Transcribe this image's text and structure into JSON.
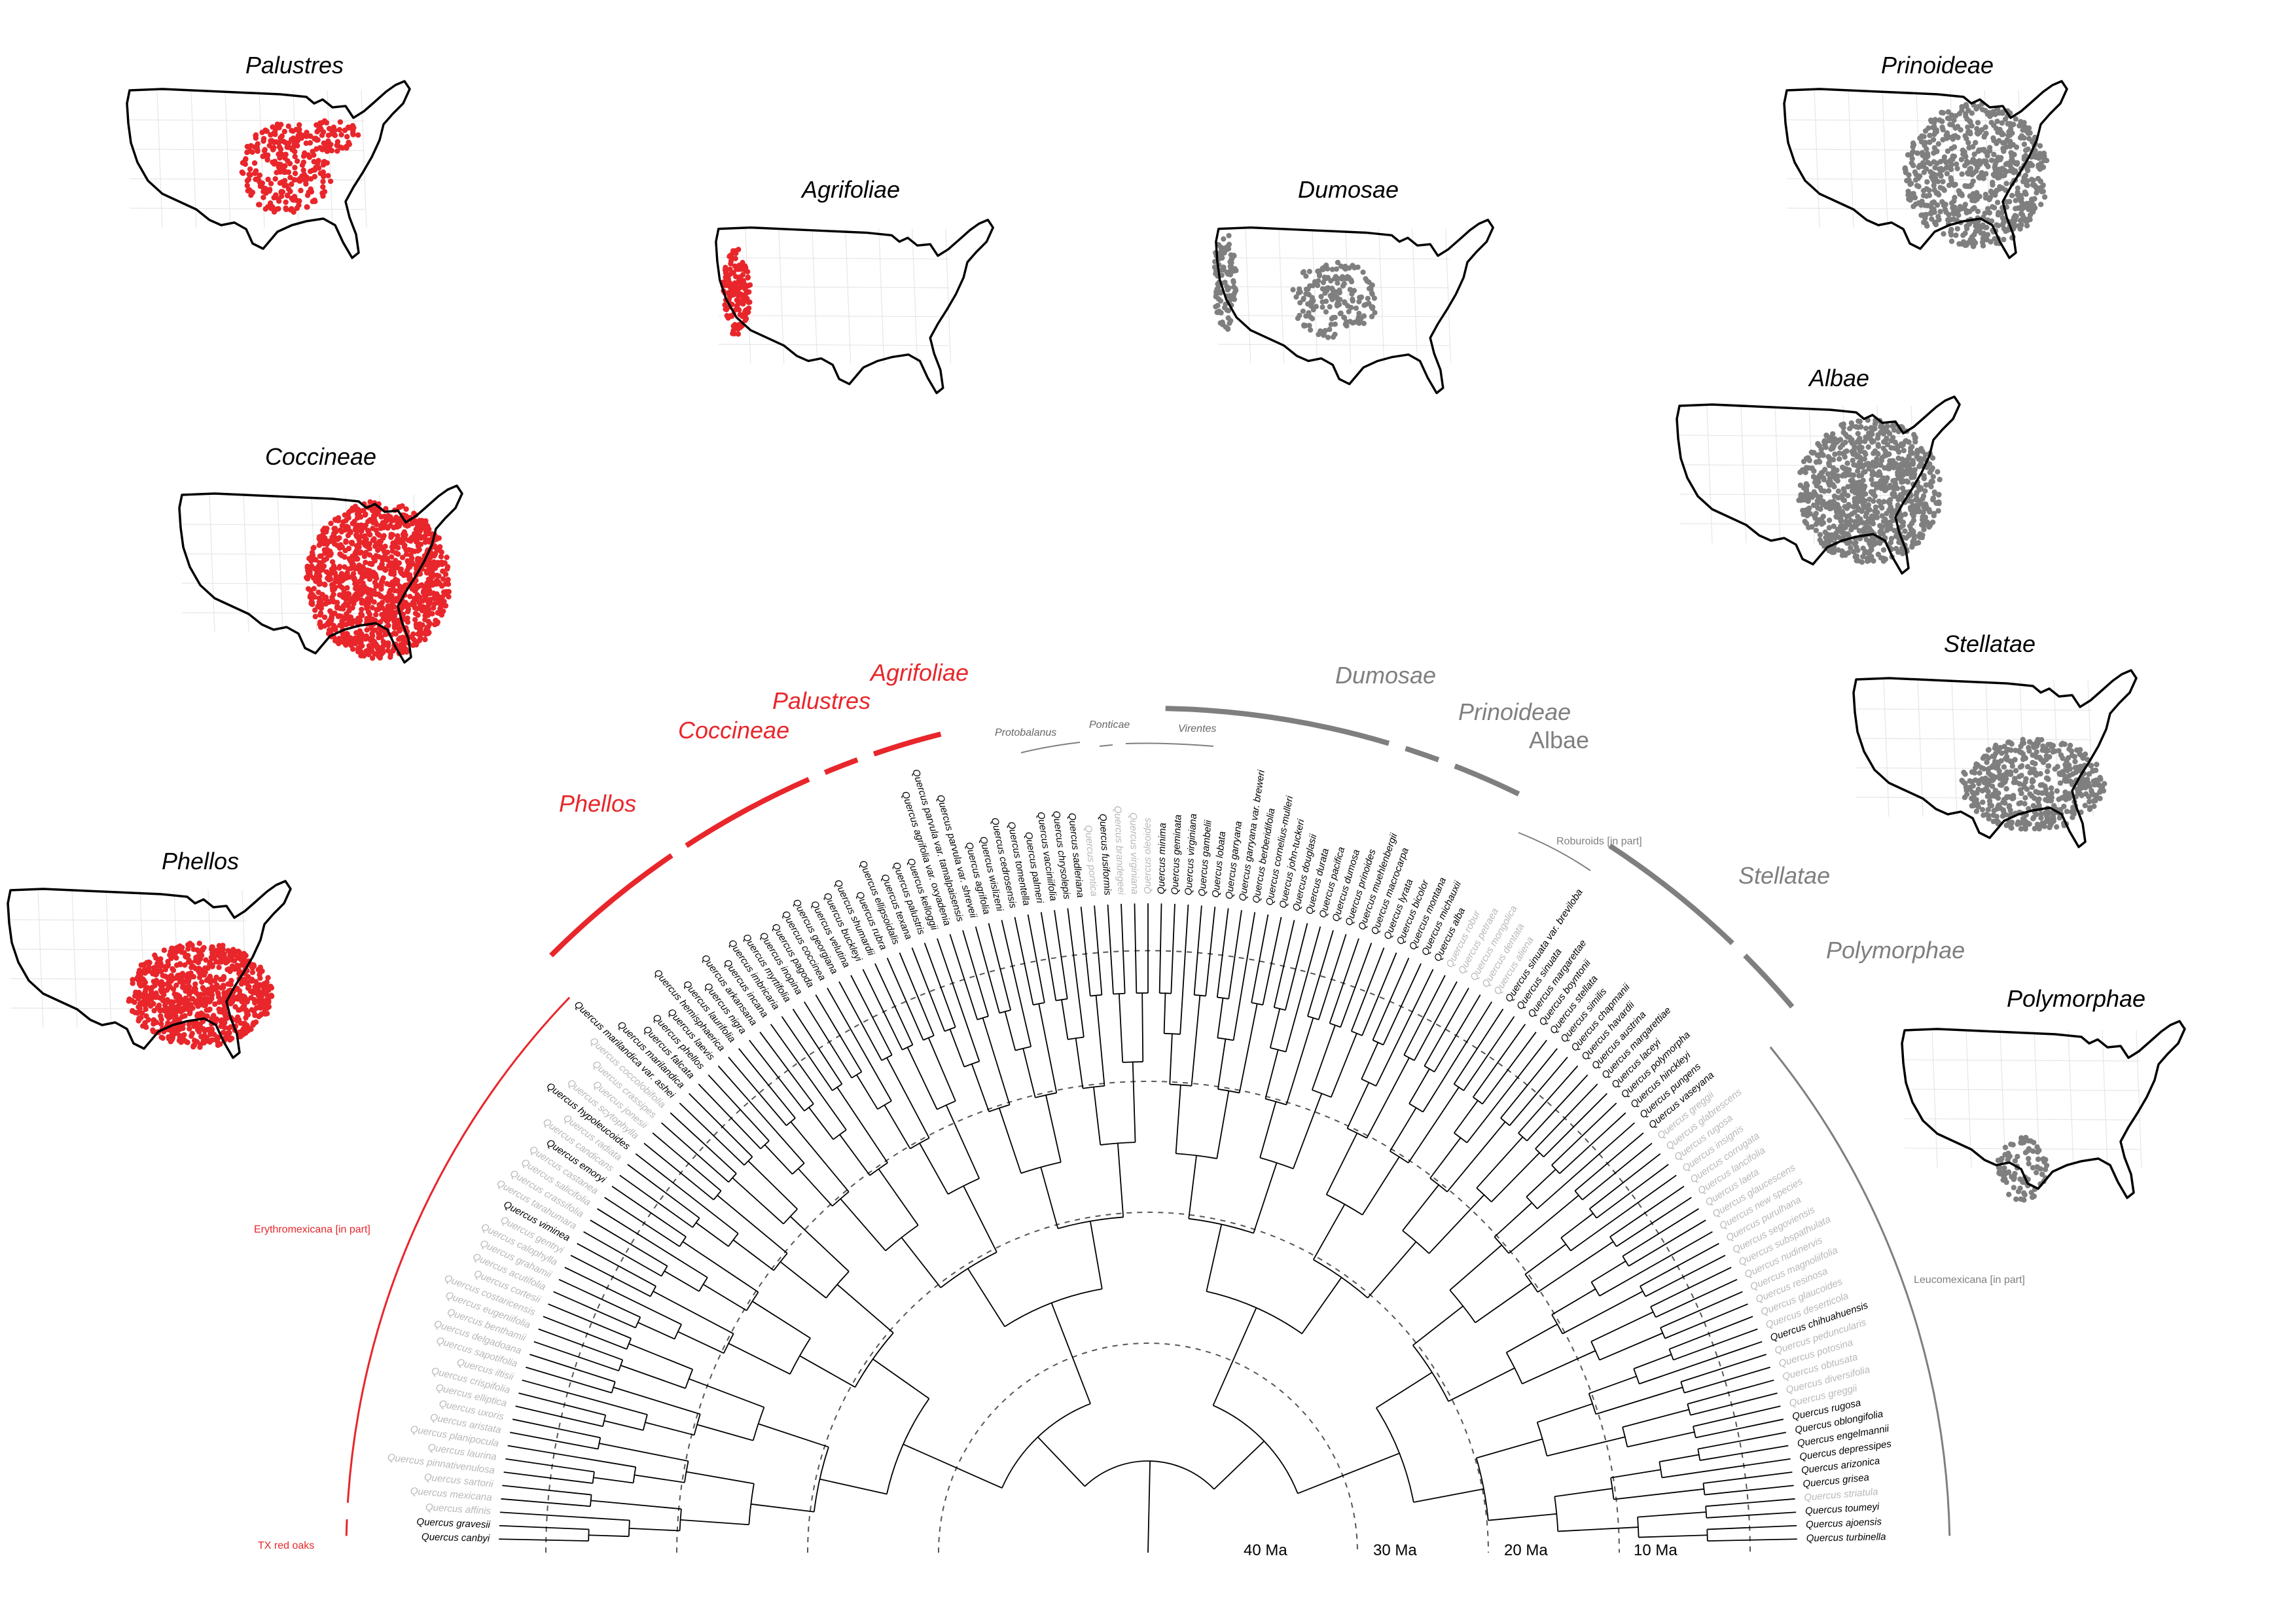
{
  "maps": [
    {
      "id": "palustres",
      "title": "Palustres",
      "color": "#e8262b"
    },
    {
      "id": "agrifoliae",
      "title": "Agrifoliae",
      "color": "#e8262b"
    },
    {
      "id": "dumosae",
      "title": "Dumosae",
      "color": "#7f7f7f"
    },
    {
      "id": "prinoideae",
      "title": "Prinoideae",
      "color": "#7f7f7f"
    },
    {
      "id": "coccineae",
      "title": "Coccineae",
      "color": "#e8262b"
    },
    {
      "id": "albae",
      "title": "Albae",
      "color": "#7f7f7f"
    },
    {
      "id": "stellatae",
      "title": "Stellatae",
      "color": "#7f7f7f"
    },
    {
      "id": "phellos",
      "title": "Phellos",
      "color": "#e8262b"
    },
    {
      "id": "polymorphae",
      "title": "Polymorphae",
      "color": "#7f7f7f"
    }
  ],
  "clade_labels": {
    "agrifoliae": "Agrifoliae",
    "palustres": "Palustres",
    "coccineae": "Coccineae",
    "phellos": "Phellos",
    "dumosae": "Dumosae",
    "prinoideae": "Prinoideae",
    "albae": "Albae",
    "stellatae": "Stellatae",
    "polymorphae": "Polymorphae"
  },
  "sections": {
    "protobalanus": "Protobalanus",
    "ponticae": "Ponticae",
    "virentes": "Virentes",
    "roburoids": "Roburoids [in part]"
  },
  "groups": {
    "erythromexicana": "Erythromexicana [in part]",
    "tx_red_oaks": "TX red oaks",
    "leucomexicana": "Leucomexicana [in part]"
  },
  "time_axis": [
    "40 Ma",
    "30 Ma",
    "20 Ma",
    "10 Ma"
  ],
  "colors": {
    "red": "#e8262b",
    "gray": "#7f7f7f",
    "light_gray": "#c0c0c0",
    "black": "#000000"
  },
  "tips": [
    {
      "name": "Quercus canbyi",
      "c": "k"
    },
    {
      "name": "Quercus gravesii",
      "c": "k"
    },
    {
      "name": "Quercus affinis",
      "c": "g"
    },
    {
      "name": "Quercus mexicana",
      "c": "g"
    },
    {
      "name": "Quercus sartorii",
      "c": "g"
    },
    {
      "name": "Quercus pinnativenulosa",
      "c": "g"
    },
    {
      "name": "Quercus laurina",
      "c": "g"
    },
    {
      "name": "Quercus planipocula",
      "c": "g"
    },
    {
      "name": "Quercus aristata",
      "c": "g"
    },
    {
      "name": "Quercus uxoris",
      "c": "g"
    },
    {
      "name": "Quercus elliptica",
      "c": "g"
    },
    {
      "name": "Quercus crispifolia",
      "c": "g"
    },
    {
      "name": "Quercus iltisii",
      "c": "g"
    },
    {
      "name": "Quercus sapotifolia",
      "c": "g"
    },
    {
      "name": "Quercus delgadoana",
      "c": "g"
    },
    {
      "name": "Quercus benthamii",
      "c": "g"
    },
    {
      "name": "Quercus eugeniifolia",
      "c": "g"
    },
    {
      "name": "Quercus costaricensis",
      "c": "g"
    },
    {
      "name": "Quercus cortesii",
      "c": "g"
    },
    {
      "name": "Quercus acutifolia",
      "c": "g"
    },
    {
      "name": "Quercus grahamii",
      "c": "g"
    },
    {
      "name": "Quercus calophylla",
      "c": "g"
    },
    {
      "name": "Quercus gentryi",
      "c": "g"
    },
    {
      "name": "Quercus viminea",
      "c": "k"
    },
    {
      "name": "Quercus tarahumara",
      "c": "g"
    },
    {
      "name": "Quercus crassifolia",
      "c": "g"
    },
    {
      "name": "Quercus salicifolia",
      "c": "g"
    },
    {
      "name": "Quercus castanea",
      "c": "g"
    },
    {
      "name": "Quercus emoryi",
      "c": "k"
    },
    {
      "name": "Quercus candicans",
      "c": "g"
    },
    {
      "name": "Quercus radiata",
      "c": "g"
    },
    {
      "name": "Quercus hypoleucoides",
      "c": "k"
    },
    {
      "name": "Quercus scytophylla",
      "c": "g"
    },
    {
      "name": "Quercus jonesii",
      "c": "g"
    },
    {
      "name": "Quercus crassipes",
      "c": "g"
    },
    {
      "name": "Quercus coccolobifolia",
      "c": "g"
    },
    {
      "name": "Quercus marilandica var. ashei",
      "c": "k"
    },
    {
      "name": "Quercus marilandica",
      "c": "k"
    },
    {
      "name": "Quercus falcata",
      "c": "k"
    },
    {
      "name": "Quercus phellos",
      "c": "k"
    },
    {
      "name": "Quercus laevis",
      "c": "k"
    },
    {
      "name": "Quercus hemisphaerica",
      "c": "k"
    },
    {
      "name": "Quercus laurifolia",
      "c": "k"
    },
    {
      "name": "Quercus nigra",
      "c": "k"
    },
    {
      "name": "Quercus arkansana",
      "c": "k"
    },
    {
      "name": "Quercus incana",
      "c": "k"
    },
    {
      "name": "Quercus imbricaria",
      "c": "k"
    },
    {
      "name": "Quercus myrtifolia",
      "c": "k"
    },
    {
      "name": "Quercus inopina",
      "c": "k"
    },
    {
      "name": "Quercus pagoda",
      "c": "k"
    },
    {
      "name": "Quercus coccinea",
      "c": "k"
    },
    {
      "name": "Quercus georgiana",
      "c": "k"
    },
    {
      "name": "Quercus velutina",
      "c": "k"
    },
    {
      "name": "Quercus buckleyi",
      "c": "k"
    },
    {
      "name": "Quercus shumardii",
      "c": "k"
    },
    {
      "name": "Quercus rubra",
      "c": "k"
    },
    {
      "name": "Quercus ellipsoidalis",
      "c": "k"
    },
    {
      "name": "Quercus texana",
      "c": "k"
    },
    {
      "name": "Quercus palustris",
      "c": "k"
    },
    {
      "name": "Quercus kelloggii",
      "c": "k"
    },
    {
      "name": "Quercus agrifolia var. oxyadenia",
      "c": "k"
    },
    {
      "name": "Quercus parvula var. tamalpaisensis",
      "c": "k"
    },
    {
      "name": "Quercus parvula var. shreveii",
      "c": "k"
    },
    {
      "name": "Quercus agrifolia",
      "c": "k"
    },
    {
      "name": "Quercus wislizeni",
      "c": "k"
    },
    {
      "name": "Quercus cedrosensis",
      "c": "k"
    },
    {
      "name": "Quercus tomentella",
      "c": "k"
    },
    {
      "name": "Quercus palmeri",
      "c": "k"
    },
    {
      "name": "Quercus vacciniifolia",
      "c": "k"
    },
    {
      "name": "Quercus chrysolepis",
      "c": "k"
    },
    {
      "name": "Quercus sadleriana",
      "c": "k"
    },
    {
      "name": "Quercus pontica",
      "c": "g"
    },
    {
      "name": "Quercus fusiformis",
      "c": "k"
    },
    {
      "name": "Quercus brandegeei",
      "c": "g"
    },
    {
      "name": "Quercus virginiana",
      "c": "g"
    },
    {
      "name": "Quercus oleoides",
      "c": "g"
    },
    {
      "name": "Quercus minima",
      "c": "k"
    },
    {
      "name": "Quercus geminata",
      "c": "k"
    },
    {
      "name": "Quercus virginiana",
      "c": "k"
    },
    {
      "name": "Quercus gambelii",
      "c": "k"
    },
    {
      "name": "Quercus lobata",
      "c": "k"
    },
    {
      "name": "Quercus garryana",
      "c": "k"
    },
    {
      "name": "Quercus garryana var. breweri",
      "c": "k"
    },
    {
      "name": "Quercus berberidifolia",
      "c": "k"
    },
    {
      "name": "Quercus cornelius-mulleri",
      "c": "k"
    },
    {
      "name": "Quercus john-tuckeri",
      "c": "k"
    },
    {
      "name": "Quercus douglasii",
      "c": "k"
    },
    {
      "name": "Quercus durata",
      "c": "k"
    },
    {
      "name": "Quercus pacifica",
      "c": "k"
    },
    {
      "name": "Quercus dumosa",
      "c": "k"
    },
    {
      "name": "Quercus prinoides",
      "c": "k"
    },
    {
      "name": "Quercus muehlenbergii",
      "c": "k"
    },
    {
      "name": "Quercus macrocarpa",
      "c": "k"
    },
    {
      "name": "Quercus lyrata",
      "c": "k"
    },
    {
      "name": "Quercus bicolor",
      "c": "k"
    },
    {
      "name": "Quercus montana",
      "c": "k"
    },
    {
      "name": "Quercus michauxii",
      "c": "k"
    },
    {
      "name": "Quercus alba",
      "c": "k"
    },
    {
      "name": "Quercus robur",
      "c": "g"
    },
    {
      "name": "Quercus petraea",
      "c": "g"
    },
    {
      "name": "Quercus mongolica",
      "c": "g"
    },
    {
      "name": "Quercus dentata",
      "c": "g"
    },
    {
      "name": "Quercus aliena",
      "c": "g"
    },
    {
      "name": "Quercus sinuata var. breviloba",
      "c": "k"
    },
    {
      "name": "Quercus sinuata",
      "c": "k"
    },
    {
      "name": "Quercus margarettae",
      "c": "k"
    },
    {
      "name": "Quercus boyntonii",
      "c": "k"
    },
    {
      "name": "Quercus stellata",
      "c": "k"
    },
    {
      "name": "Quercus similis",
      "c": "k"
    },
    {
      "name": "Quercus chapmanii",
      "c": "k"
    },
    {
      "name": "Quercus havardii",
      "c": "k"
    },
    {
      "name": "Quercus austrina",
      "c": "k"
    },
    {
      "name": "Quercus margarettiae",
      "c": "k"
    },
    {
      "name": "Quercus laceyi",
      "c": "k"
    },
    {
      "name": "Quercus polymorpha",
      "c": "k"
    },
    {
      "name": "Quercus hinckleyi",
      "c": "k"
    },
    {
      "name": "Quercus pungens",
      "c": "k"
    },
    {
      "name": "Quercus vaseyana",
      "c": "k"
    },
    {
      "name": "Quercus greggii",
      "c": "g"
    },
    {
      "name": "Quercus glabrescens",
      "c": "g"
    },
    {
      "name": "Quercus rugosa",
      "c": "g"
    },
    {
      "name": "Quercus insignis",
      "c": "g"
    },
    {
      "name": "Quercus corrugata",
      "c": "g"
    },
    {
      "name": "Quercus lancifolia",
      "c": "g"
    },
    {
      "name": "Quercus laeta",
      "c": "g"
    },
    {
      "name": "Quercus glaucescens",
      "c": "g"
    },
    {
      "name": "Quercus new species",
      "c": "g"
    },
    {
      "name": "Quercus purulhana",
      "c": "g"
    },
    {
      "name": "Quercus segoviensis",
      "c": "g"
    },
    {
      "name": "Quercus subspathulata",
      "c": "g"
    },
    {
      "name": "Quercus nudinervis",
      "c": "g"
    },
    {
      "name": "Quercus magnoliifolia",
      "c": "g"
    },
    {
      "name": "Quercus resinosa",
      "c": "g"
    },
    {
      "name": "Quercus glaucoides",
      "c": "g"
    },
    {
      "name": "Quercus deserticola",
      "c": "g"
    },
    {
      "name": "Quercus chihuahuensis",
      "c": "k"
    },
    {
      "name": "Quercus peduncularis",
      "c": "g"
    },
    {
      "name": "Quercus potosina",
      "c": "g"
    },
    {
      "name": "Quercus obtusata",
      "c": "g"
    },
    {
      "name": "Quercus diversifolia",
      "c": "g"
    },
    {
      "name": "Quercus greggii",
      "c": "g"
    },
    {
      "name": "Quercus rugosa",
      "c": "k"
    },
    {
      "name": "Quercus oblongifolia",
      "c": "k"
    },
    {
      "name": "Quercus engelmannii",
      "c": "k"
    },
    {
      "name": "Quercus depressipes",
      "c": "k"
    },
    {
      "name": "Quercus arizonica",
      "c": "k"
    },
    {
      "name": "Quercus grisea",
      "c": "k"
    },
    {
      "name": "Quercus striatula",
      "c": "g"
    },
    {
      "name": "Quercus toumeyi",
      "c": "k"
    },
    {
      "name": "Quercus ajoensis",
      "c": "k"
    },
    {
      "name": "Quercus turbinella",
      "c": "k"
    }
  ]
}
